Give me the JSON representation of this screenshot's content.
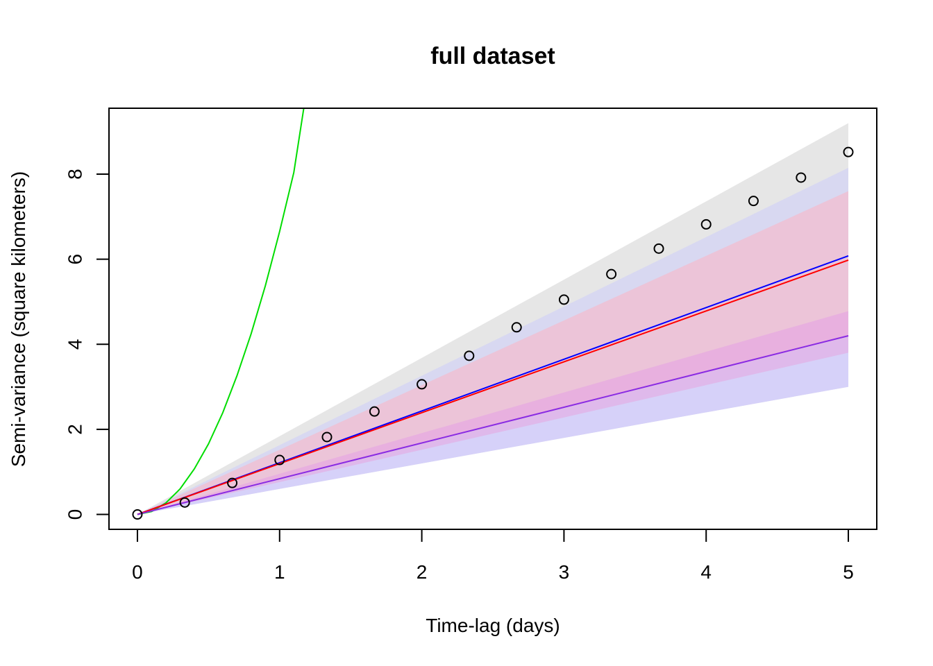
{
  "chart_data": {
    "type": "line",
    "title": "full dataset",
    "xlabel": "Time-lag (days)",
    "ylabel": "Semi-variance (square kilometers)",
    "xlim": [
      -0.2,
      5.2
    ],
    "ylim": [
      -0.35,
      9.55
    ],
    "xticks": [
      0,
      1,
      2,
      3,
      4,
      5
    ],
    "yticks": [
      0,
      2,
      4,
      6,
      8
    ],
    "grid": false,
    "legend": "none",
    "empirical_points": {
      "x": [
        0,
        0.333,
        0.667,
        1.0,
        1.333,
        1.667,
        2.0,
        2.333,
        2.667,
        3.0,
        3.333,
        3.667,
        4.0,
        4.333,
        4.667,
        5.0
      ],
      "y": [
        0,
        0.28,
        0.74,
        1.28,
        1.82,
        2.42,
        3.06,
        3.73,
        4.4,
        5.05,
        5.65,
        6.25,
        6.82,
        7.37,
        7.92,
        8.52
      ]
    },
    "bands": [
      {
        "color": "#d9d9d9",
        "opacity": 0.65,
        "x": [
          0,
          5
        ],
        "lower": [
          0,
          3.0
        ],
        "upper": [
          0,
          9.2
        ]
      },
      {
        "color": "#c8c8ff",
        "opacity": 0.45,
        "x": [
          0,
          5
        ],
        "lower": [
          0,
          3.0
        ],
        "upper": [
          0,
          8.15
        ]
      },
      {
        "color": "#ffb0c0",
        "opacity": 0.5,
        "x": [
          0,
          5
        ],
        "lower": [
          0,
          4.2
        ],
        "upper": [
          0,
          7.6
        ]
      },
      {
        "color": "#e6a0e6",
        "opacity": 0.55,
        "x": [
          0,
          5
        ],
        "lower": [
          0,
          3.8
        ],
        "upper": [
          0,
          4.78
        ]
      },
      {
        "color": "#d6ccff",
        "opacity": 0.55,
        "x": [
          0,
          5
        ],
        "lower": [
          0,
          3.0
        ],
        "upper": [
          0,
          3.8
        ]
      }
    ],
    "series": [
      {
        "color": "#00dd00",
        "x": [
          0,
          0.1,
          0.2,
          0.3,
          0.4,
          0.5,
          0.6,
          0.7,
          0.8,
          0.9,
          1.0,
          1.1,
          1.17
        ],
        "y": [
          0,
          0.07,
          0.27,
          0.6,
          1.07,
          1.66,
          2.39,
          3.26,
          4.25,
          5.38,
          6.65,
          8.04,
          9.55
        ]
      },
      {
        "color": "#0000ff",
        "x": [
          0,
          5
        ],
        "y": [
          0,
          6.08
        ]
      },
      {
        "color": "#ff0000",
        "x": [
          0,
          5
        ],
        "y": [
          0,
          5.98
        ]
      },
      {
        "color": "#8a2be2",
        "x": [
          0,
          5
        ],
        "y": [
          0,
          4.2
        ]
      }
    ]
  }
}
